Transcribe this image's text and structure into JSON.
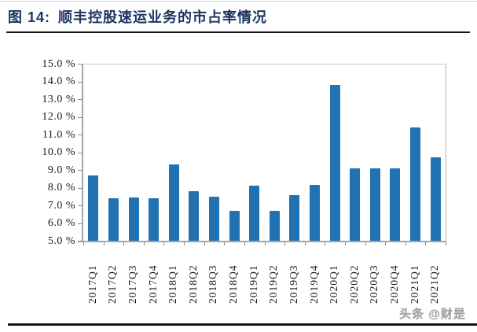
{
  "header": {
    "figure_label": "图 14:",
    "title": "顺丰控股速运业务的市占率情况"
  },
  "watermark": "头条 @财是",
  "colors": {
    "bar": "#2272b2",
    "title_text": "#1b3561",
    "rule": "#15161d",
    "axis": "#a6a6a6"
  },
  "chart_data": {
    "type": "bar",
    "title": "顺丰控股速运业务的市占率情况",
    "categories": [
      "2017Q1",
      "2017Q2",
      "2017Q3",
      "2017Q4",
      "2018Q1",
      "2018Q2",
      "2018Q3",
      "2018Q4",
      "2019Q1",
      "2019Q2",
      "2019Q3",
      "2019Q4",
      "2020Q1",
      "2020Q2",
      "2020Q3",
      "2020Q4",
      "2021Q1",
      "2021Q2"
    ],
    "values": [
      8.7,
      7.4,
      7.45,
      7.4,
      9.3,
      7.8,
      7.5,
      6.7,
      8.1,
      6.7,
      7.6,
      8.15,
      13.8,
      9.1,
      9.1,
      9.1,
      11.4,
      9.7
    ],
    "unit": "%",
    "xlabel": "",
    "ylabel": "",
    "ylim": [
      5.0,
      15.0
    ],
    "ytick_step": 1.0,
    "ytick_labels": [
      "15.0 %",
      "14.0 %",
      "13.0 %",
      "12.0 %",
      "11.0 %",
      "10.0 %",
      "9.0 %",
      "8.0 %",
      "7.0 %",
      "6.0 %",
      "5.0 %"
    ],
    "grid": false,
    "legend": null,
    "bar_color": "#2272b2"
  }
}
